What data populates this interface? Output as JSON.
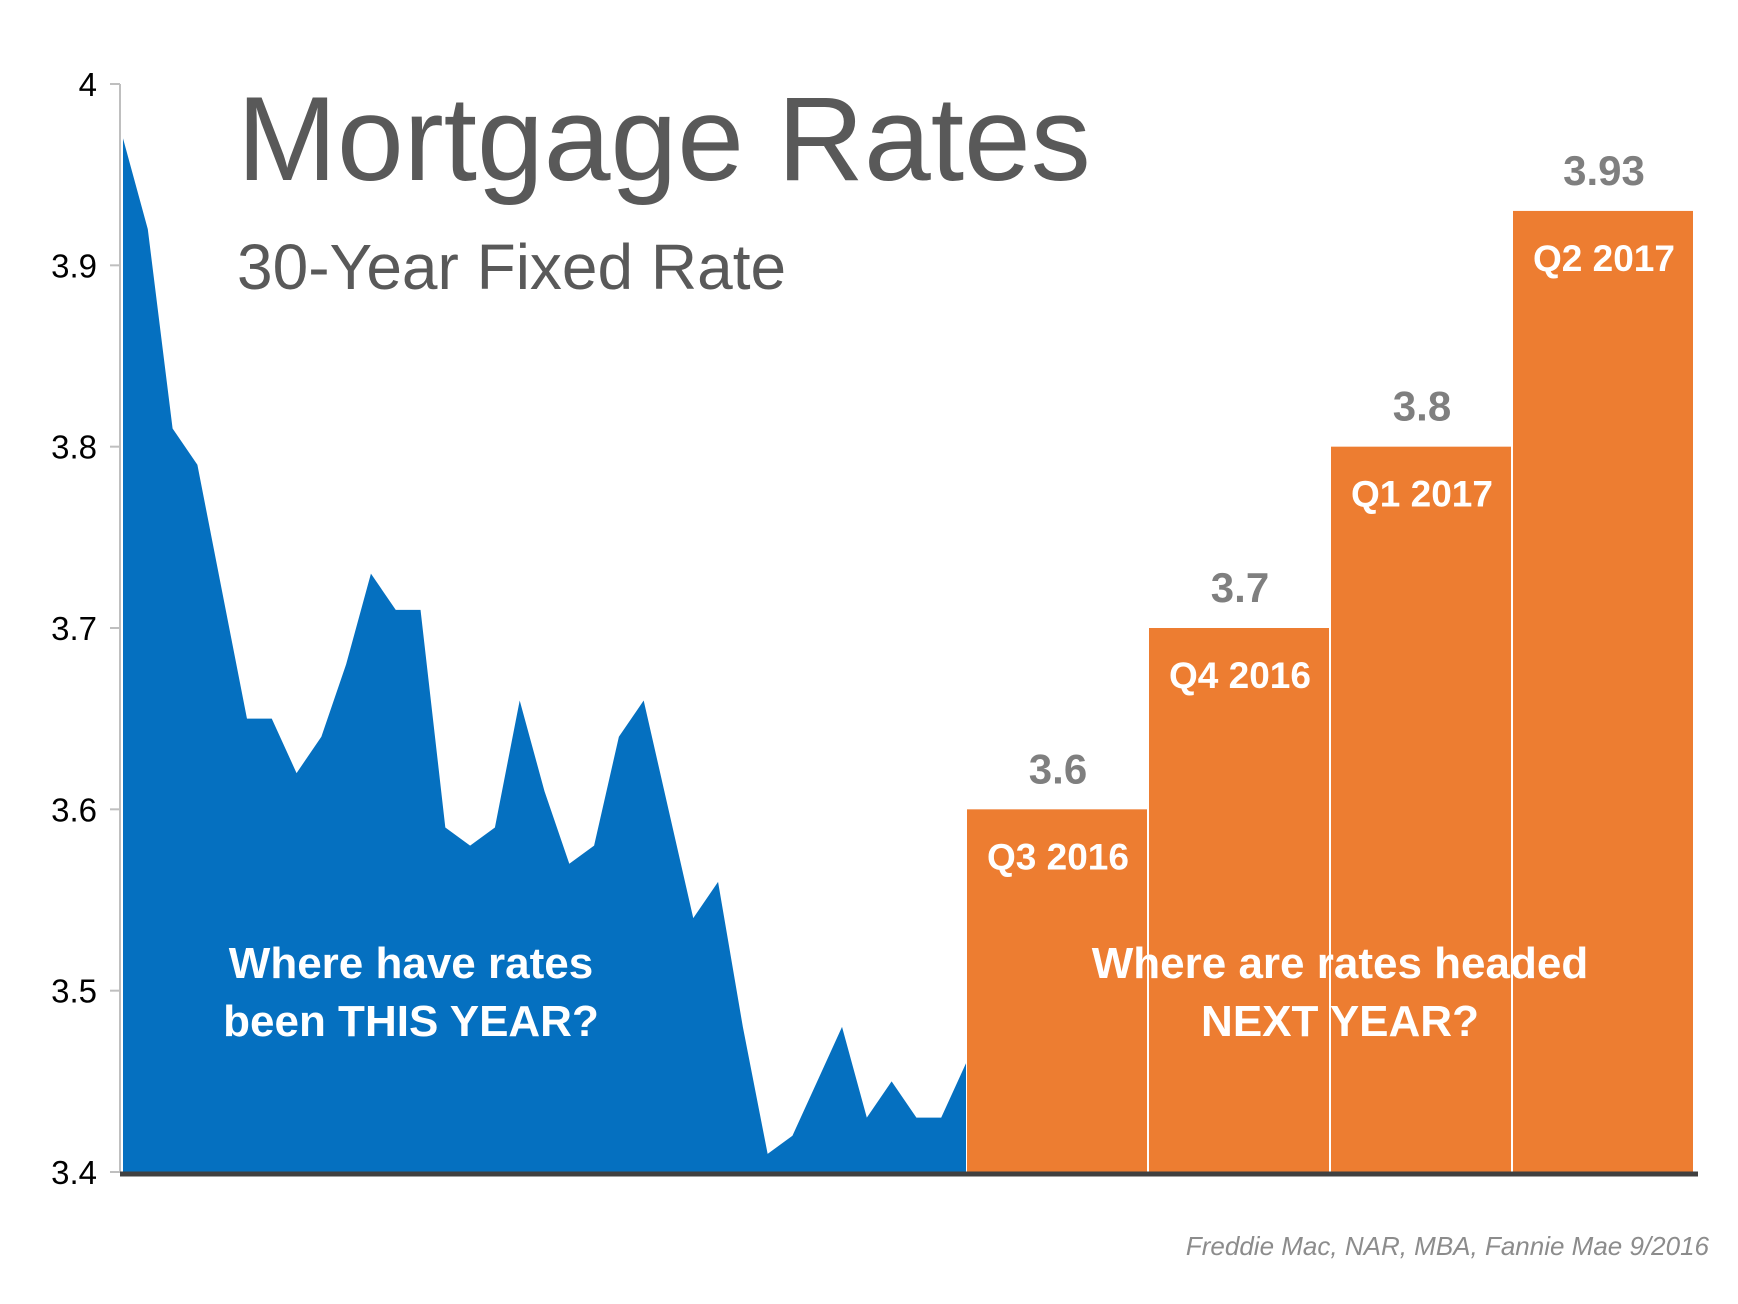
{
  "chart_data": [
    {
      "type": "area",
      "title": "Mortgage Rates",
      "subtitle": "30-Year Fixed Rate",
      "categories": [
        null,
        null,
        null,
        null,
        null,
        null,
        null,
        null,
        null,
        null,
        null,
        null,
        null,
        null,
        null,
        null,
        null,
        null,
        null,
        null,
        null,
        null,
        null,
        null,
        null,
        null,
        null,
        null,
        null,
        null,
        null,
        null,
        null,
        null,
        null
      ],
      "values": [
        3.97,
        3.92,
        3.81,
        3.79,
        3.72,
        3.65,
        3.65,
        3.62,
        3.64,
        3.68,
        3.73,
        3.71,
        3.71,
        3.59,
        3.58,
        3.59,
        3.66,
        3.61,
        3.57,
        3.58,
        3.64,
        3.66,
        3.6,
        3.54,
        3.56,
        3.48,
        3.41,
        3.42,
        3.45,
        3.48,
        3.43,
        3.45,
        3.43,
        3.43,
        3.46
      ],
      "color": "#0570c0",
      "annotation": [
        "Where have rates",
        "been THIS YEAR?"
      ],
      "ylim": [
        3.4,
        4
      ],
      "yticks": [
        3.4,
        3.5,
        3.6,
        3.7,
        3.8,
        3.9,
        4
      ],
      "source": "Freddie Mac, NAR, MBA, Fannie Mae 9/2016"
    },
    {
      "type": "bar",
      "categories": [
        "Q3 2016",
        "Q4 2016",
        "Q1 2017",
        "Q2 2017"
      ],
      "values": [
        3.6,
        3.7,
        3.8,
        3.93
      ],
      "color": "#ed7d31",
      "annotation": [
        "Where are rates headed",
        "NEXT YEAR?"
      ]
    }
  ]
}
